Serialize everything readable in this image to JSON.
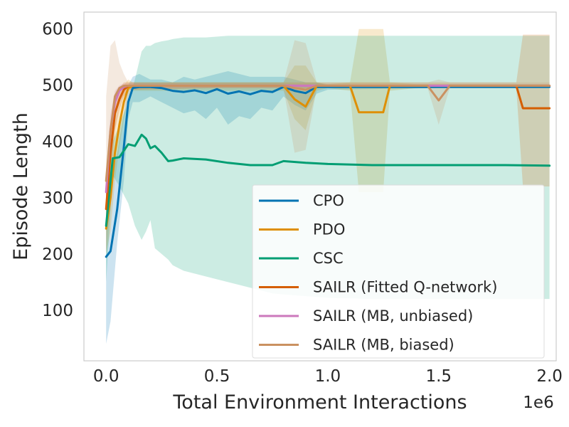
{
  "chart_data": {
    "type": "line",
    "xlabel": "Total Environment Interactions",
    "ylabel": "Episode Length",
    "x_offset_label": "1e6",
    "xlim": [
      -0.1,
      2.03
    ],
    "ylim": [
      10,
      630
    ],
    "xticks": [
      0.0,
      0.5,
      1.0,
      1.5,
      2.0
    ],
    "xtick_labels": [
      "0.0",
      "0.5",
      "1.0",
      "1.5",
      "2.0"
    ],
    "yticks": [
      100,
      200,
      300,
      400,
      500,
      600
    ],
    "ytick_labels": [
      "100",
      "200",
      "300",
      "400",
      "500",
      "600"
    ],
    "grid": false,
    "legend_position": "lower-right",
    "series": [
      {
        "name": "CPO",
        "color": "#0173b2",
        "x": [
          0.0,
          0.02,
          0.05,
          0.08,
          0.1,
          0.12,
          0.15,
          0.2,
          0.25,
          0.3,
          0.35,
          0.4,
          0.45,
          0.5,
          0.55,
          0.6,
          0.65,
          0.7,
          0.75,
          0.8,
          0.85,
          0.9,
          0.95,
          1.0,
          1.5,
          2.0
        ],
        "y": [
          195,
          205,
          280,
          390,
          470,
          495,
          497,
          497,
          495,
          490,
          488,
          491,
          486,
          493,
          485,
          489,
          484,
          490,
          488,
          497,
          490,
          486,
          497,
          497,
          497,
          497
        ],
        "band_lower": [
          40,
          80,
          220,
          330,
          440,
          470,
          470,
          480,
          470,
          460,
          450,
          455,
          440,
          460,
          430,
          445,
          440,
          460,
          455,
          480,
          465,
          455,
          485,
          492,
          495,
          495
        ],
        "band_upper": [
          320,
          340,
          380,
          450,
          500,
          515,
          520,
          510,
          510,
          505,
          515,
          510,
          515,
          520,
          525,
          520,
          515,
          515,
          515,
          515,
          510,
          505,
          505,
          500,
          500,
          500
        ]
      },
      {
        "name": "PDO",
        "color": "#de8f05",
        "x": [
          0.0,
          0.02,
          0.04,
          0.06,
          0.08,
          0.1,
          0.12,
          0.5,
          0.8,
          0.85,
          0.9,
          0.95,
          1.0,
          1.1,
          1.14,
          1.25,
          1.28,
          1.4,
          1.5,
          1.6,
          1.65,
          2.0
        ],
        "y": [
          245,
          300,
          380,
          430,
          470,
          495,
          499,
          499,
          499,
          475,
          462,
          499,
          499,
          499,
          452,
          452,
          499,
          499,
          499,
          499,
          499,
          499
        ],
        "band_lower": [
          200,
          240,
          330,
          390,
          440,
          480,
          490,
          490,
          490,
          440,
          420,
          490,
          495,
          490,
          310,
          310,
          490,
          495,
          495,
          495,
          495,
          495
        ],
        "band_upper": [
          300,
          360,
          430,
          470,
          500,
          510,
          505,
          505,
          505,
          535,
          535,
          505,
          502,
          505,
          600,
          600,
          505,
          502,
          502,
          502,
          502,
          502
        ]
      },
      {
        "name": "CSC",
        "color": "#029e73",
        "x": [
          0.0,
          0.03,
          0.06,
          0.1,
          0.13,
          0.16,
          0.18,
          0.2,
          0.22,
          0.25,
          0.28,
          0.3,
          0.35,
          0.45,
          0.55,
          0.65,
          0.75,
          0.8,
          0.9,
          1.0,
          1.2,
          1.5,
          1.8,
          2.0
        ],
        "y": [
          250,
          370,
          372,
          395,
          392,
          412,
          405,
          388,
          392,
          380,
          365,
          366,
          370,
          368,
          362,
          358,
          358,
          365,
          362,
          360,
          358,
          358,
          358,
          357
        ],
        "band_lower": [
          150,
          340,
          320,
          290,
          250,
          225,
          240,
          260,
          210,
          200,
          190,
          180,
          170,
          160,
          150,
          140,
          130,
          128,
          125,
          122,
          120,
          120,
          120,
          120
        ],
        "band_upper": [
          350,
          400,
          430,
          470,
          510,
          560,
          570,
          570,
          575,
          578,
          580,
          582,
          585,
          585,
          588,
          588,
          588,
          588,
          588,
          588,
          588,
          588,
          588,
          588
        ]
      },
      {
        "name": "SAILR (Fitted Q-network)",
        "color": "#d55e00",
        "x": [
          0.0,
          0.02,
          0.04,
          0.06,
          0.08,
          0.1,
          0.5,
          1.0,
          1.5,
          1.85,
          1.88,
          2.0
        ],
        "y": [
          280,
          380,
          450,
          475,
          492,
          499,
          499,
          499,
          499,
          499,
          459,
          459
        ],
        "band_lower": [
          250,
          340,
          420,
          455,
          480,
          492,
          495,
          495,
          495,
          495,
          320,
          320
        ],
        "band_upper": [
          320,
          420,
          480,
          495,
          505,
          505,
          505,
          505,
          505,
          505,
          590,
          590
        ]
      },
      {
        "name": "SAILR (MB, unbiased)",
        "color": "#cc78bc",
        "x": [
          0.0,
          0.02,
          0.04,
          0.06,
          0.08,
          0.1,
          0.5,
          1.0,
          1.5,
          2.0
        ],
        "y": [
          310,
          420,
          470,
          490,
          497,
          499,
          499,
          499,
          499,
          499
        ],
        "band_lower": [
          270,
          390,
          450,
          478,
          490,
          495,
          496,
          496,
          496,
          496
        ],
        "band_upper": [
          350,
          450,
          490,
          500,
          503,
          503,
          502,
          502,
          502,
          502
        ]
      },
      {
        "name": "SAILR (MB, biased)",
        "color": "#ca9161",
        "x": [
          0.0,
          0.02,
          0.04,
          0.06,
          0.08,
          0.1,
          0.5,
          0.8,
          0.85,
          0.9,
          0.95,
          1.4,
          1.45,
          1.5,
          1.55,
          1.6,
          2.0
        ],
        "y": [
          330,
          420,
          480,
          495,
          499,
          499,
          499,
          499,
          495,
          492,
          499,
          499,
          499,
          473,
          499,
          499,
          499
        ],
        "band_lower": [
          200,
          300,
          420,
          470,
          480,
          492,
          495,
          495,
          380,
          385,
          495,
          495,
          495,
          430,
          495,
          495,
          495
        ],
        "band_upper": [
          480,
          570,
          580,
          540,
          520,
          505,
          505,
          505,
          580,
          575,
          505,
          505,
          505,
          510,
          505,
          505,
          505
        ]
      }
    ]
  }
}
